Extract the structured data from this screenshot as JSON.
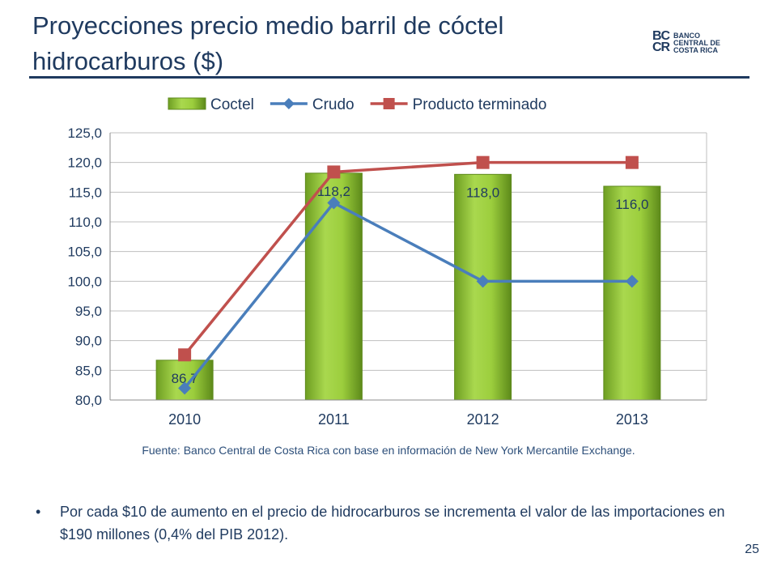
{
  "slide": {
    "title": "Proyecciones precio medio barril de cóctel hidrocarburos ($)",
    "source": "Fuente: Banco Central de Costa Rica con base en información de New York Mercantile Exchange.",
    "bullet": "Por cada $10 de aumento en el precio de hidrocarburos se incrementa el valor de las importaciones en $190 millones (0,4% del PIB 2012).",
    "bullet_marker": "•",
    "page_number": "25",
    "logo": {
      "mark": "BC\nCR",
      "lines": [
        "BANCO",
        "CENTRAL DE",
        "COSTA RICA"
      ]
    }
  },
  "colors": {
    "title": "#1f3a5f",
    "bar_fill": "#8fc33a",
    "bar_edge": "#5e8a1c",
    "crudo": "#4a7ebb",
    "producto": "#c0504d"
  },
  "chart_data": {
    "type": "bar",
    "categories": [
      "2010",
      "2011",
      "2012",
      "2013"
    ],
    "series": [
      {
        "name": "Coctel",
        "type": "bar",
        "values": [
          86.7,
          118.2,
          118.0,
          116.0
        ],
        "labels": [
          "86,7",
          "118,2",
          "118,0",
          "116,0"
        ]
      },
      {
        "name": "Crudo",
        "type": "line",
        "marker": "diamond",
        "values": [
          82.0,
          113.2,
          100.0,
          100.0
        ]
      },
      {
        "name": "Producto terminado",
        "type": "line",
        "marker": "square",
        "values": [
          87.6,
          118.4,
          120.0,
          120.0
        ]
      }
    ],
    "ylim": [
      80.0,
      125.0
    ],
    "yticks": [
      "80,0",
      "85,0",
      "90,0",
      "95,0",
      "100,0",
      "105,0",
      "110,0",
      "115,0",
      "120,0",
      "125,0"
    ],
    "ytick_values": [
      80,
      85,
      90,
      95,
      100,
      105,
      110,
      115,
      120,
      125
    ],
    "grid": true,
    "legend": "top"
  }
}
